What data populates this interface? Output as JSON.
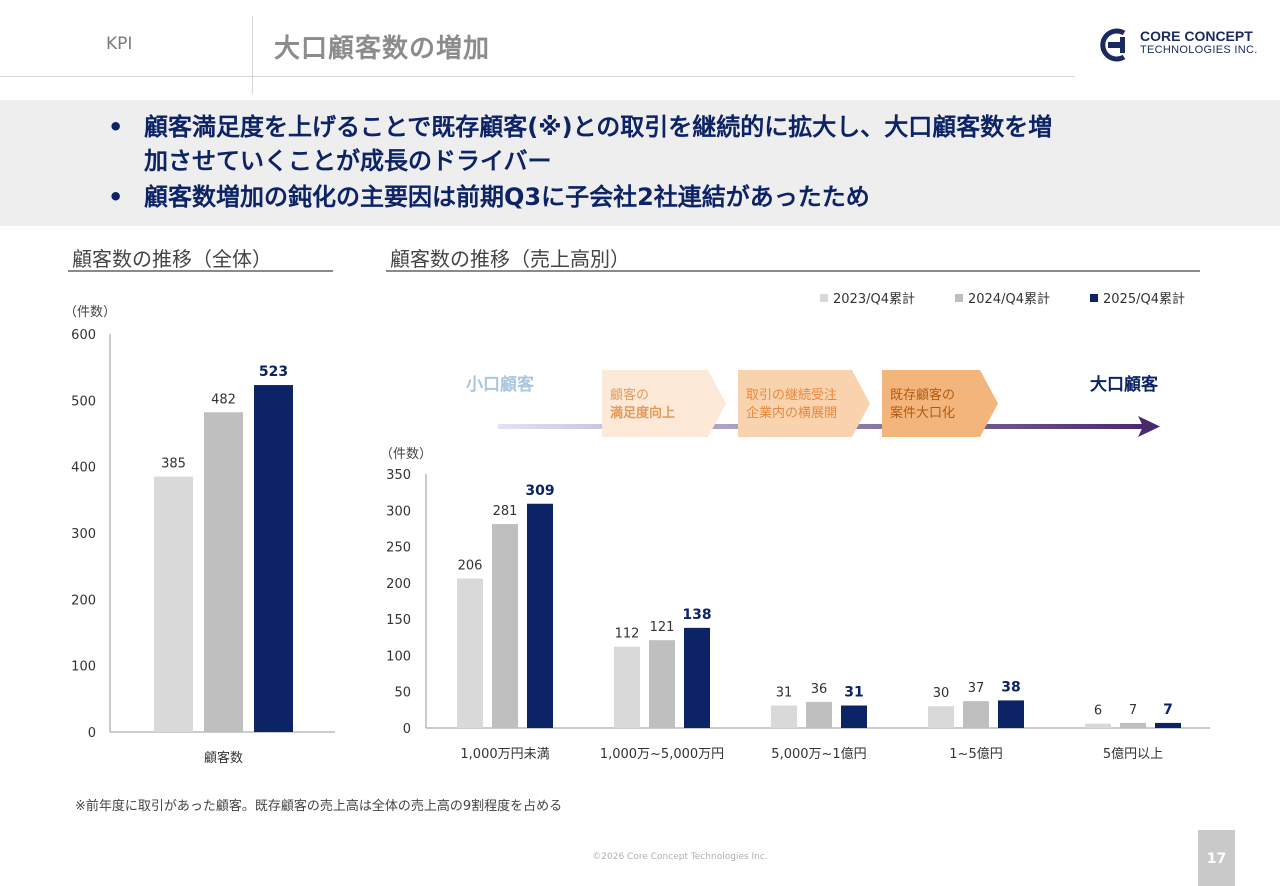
{
  "header": {
    "section": "KPI",
    "title": "大口顧客数の増加"
  },
  "logo": {
    "line1": "CORE CONCEPT",
    "line2": "TECHNOLOGIES INC."
  },
  "summary": {
    "bullets": [
      "顧客満足度を上げることで既存顧客(※)との取引を継続的に拡大し、大口顧客数を増",
      "加させていくことが成長のドライバー",
      "顧客数増加の鈍化の主要因は前期Q3に子会社2社連結があったため"
    ]
  },
  "left_panel": {
    "title": "顧客数の推移（全体）"
  },
  "right_panel": {
    "title": "顧客数の推移（売上高別）"
  },
  "legend": [
    {
      "label": "2023/Q4累計",
      "color": "#d9d9d9"
    },
    {
      "label": "2024/Q4累計",
      "color": "#bfbfbf"
    },
    {
      "label": "2025/Q4累計",
      "color": "#0c2366"
    }
  ],
  "flow": {
    "left_label": "小口顧客",
    "right_label": "大口顧客",
    "steps": [
      {
        "line1": "顧客の",
        "line2": "満足度向上"
      },
      {
        "line1": "取引の継続受注",
        "line2": "企業内の横展開"
      },
      {
        "line1": "既存顧客の",
        "line2": "案件大口化"
      }
    ]
  },
  "chart_data": [
    {
      "type": "bar",
      "title": "顧客数の推移（全体）",
      "unit_label": "（件数）",
      "categories": [
        "顧客数"
      ],
      "series": [
        {
          "name": "2023/Q4累計",
          "values": [
            385
          ]
        },
        {
          "name": "2024/Q4累計",
          "values": [
            482
          ]
        },
        {
          "name": "2025/Q4累計",
          "values": [
            523
          ]
        }
      ],
      "ylim": [
        0,
        600
      ],
      "yticks": [
        0,
        100,
        200,
        300,
        400,
        500,
        600
      ],
      "grid": false
    },
    {
      "type": "bar",
      "title": "顧客数の推移（売上高別）",
      "unit_label": "（件数）",
      "categories": [
        "1,000万円未満",
        "1,000万~5,000万円",
        "5,000万~1億円",
        "1~5億円",
        "5億円以上"
      ],
      "series": [
        {
          "name": "2023/Q4累計",
          "values": [
            206,
            112,
            31,
            30,
            6
          ]
        },
        {
          "name": "2024/Q4累計",
          "values": [
            281,
            121,
            36,
            37,
            7
          ]
        },
        {
          "name": "2025/Q4累計",
          "values": [
            309,
            138,
            31,
            38,
            7
          ]
        }
      ],
      "ylim": [
        0,
        350
      ],
      "yticks": [
        0,
        50,
        100,
        150,
        200,
        250,
        300,
        350
      ],
      "grid": false,
      "legend_position": "top-right"
    }
  ],
  "footnote": "※前年度に取引があった顧客。既存顧客の売上高は全体の売上高の9割程度を占める",
  "footer": {
    "copyright": "©2026 Core Concept Technologies Inc.",
    "page_number": "17"
  }
}
